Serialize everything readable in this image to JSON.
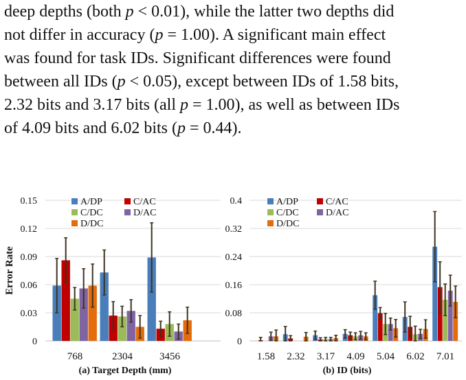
{
  "paragraph": {
    "lines": [
      "deep depths (both p < 0.01), while the latter two depths did",
      "not differ in accuracy (p = 1.00). A significant main effect",
      "was found for task IDs. Significant differences were found",
      "between all IDs (p < 0.05), except between IDs of 1.58 bits,",
      "2.32 bits and 3.17 bits (all p = 1.00), as well as between IDs",
      "of 4.09 bits and 6.02 bits (p = 0.44)."
    ]
  },
  "colors": {
    "A/DP": "#4a7ebb",
    "C/AC": "#c00000",
    "C/DC": "#9bbb59",
    "D/AC": "#8064a2",
    "D/DC": "#e46c0a",
    "error": "#3c3320",
    "grid": "#d9d9d9"
  },
  "chart_data": [
    {
      "type": "bar",
      "ylabel": "Error Rate",
      "xlabel": "Target Depth (mm)",
      "caption_prefix": "(a)",
      "categories": [
        "768",
        "2304",
        "3456"
      ],
      "ylim": [
        0,
        0.15
      ],
      "yticks": [
        "0",
        "0.03",
        "0.06",
        "0.09",
        "0.12",
        "0.15"
      ],
      "grid": true,
      "legend_position": "top-left",
      "series": [
        {
          "name": "A/DP",
          "values": [
            0.059,
            0.073,
            0.089
          ],
          "errors": [
            0.029,
            0.024,
            0.037
          ]
        },
        {
          "name": "C/AC",
          "values": [
            0.086,
            0.027,
            0.013
          ],
          "errors": [
            0.024,
            0.015,
            0.008
          ]
        },
        {
          "name": "C/DC",
          "values": [
            0.045,
            0.026,
            0.018
          ],
          "errors": [
            0.012,
            0.011,
            0.013
          ]
        },
        {
          "name": "D/AC",
          "values": [
            0.056,
            0.032,
            0.01
          ],
          "errors": [
            0.021,
            0.012,
            0.008
          ]
        },
        {
          "name": "D/DC",
          "values": [
            0.059,
            0.015,
            0.022
          ],
          "errors": [
            0.023,
            0.012,
            0.014
          ]
        }
      ]
    },
    {
      "type": "bar",
      "ylabel": "",
      "xlabel": "ID (bits)",
      "caption_prefix": "(b)",
      "categories": [
        "1.58",
        "2.32",
        "3.17",
        "4.09",
        "5.04",
        "6.02",
        "7.01"
      ],
      "ylim": [
        0,
        0.4
      ],
      "yticks": [
        "0",
        "0.08",
        "0.16",
        "0.24",
        "0.32",
        "0.4"
      ],
      "grid": true,
      "legend_position": "top-left",
      "series": [
        {
          "name": "A/DP",
          "values": [
            0.0,
            0.019,
            0.016,
            0.02,
            0.13,
            0.068,
            0.268
          ],
          "errors": [
            0.0,
            0.022,
            0.012,
            0.012,
            0.04,
            0.043,
            0.1
          ]
        },
        {
          "name": "C/AC",
          "values": [
            0.002,
            0.007,
            0.004,
            0.016,
            0.079,
            0.04,
            0.153
          ],
          "errors": [
            0.008,
            0.008,
            0.005,
            0.009,
            0.016,
            0.03,
            0.072
          ]
        },
        {
          "name": "C/DC",
          "values": [
            0.0,
            0.0,
            0.005,
            0.013,
            0.048,
            0.019,
            0.117
          ],
          "errors": [
            0.0,
            0.0,
            0.005,
            0.01,
            0.03,
            0.023,
            0.045
          ]
        },
        {
          "name": "D/AC",
          "values": [
            0.013,
            0.0,
            0.005,
            0.016,
            0.048,
            0.02,
            0.143
          ],
          "errors": [
            0.012,
            0.0,
            0.005,
            0.011,
            0.017,
            0.013,
            0.044
          ]
        },
        {
          "name": "D/DC",
          "values": [
            0.013,
            0.012,
            0.008,
            0.013,
            0.036,
            0.034,
            0.111
          ],
          "errors": [
            0.018,
            0.012,
            0.008,
            0.01,
            0.025,
            0.026,
            0.045
          ]
        }
      ]
    }
  ]
}
